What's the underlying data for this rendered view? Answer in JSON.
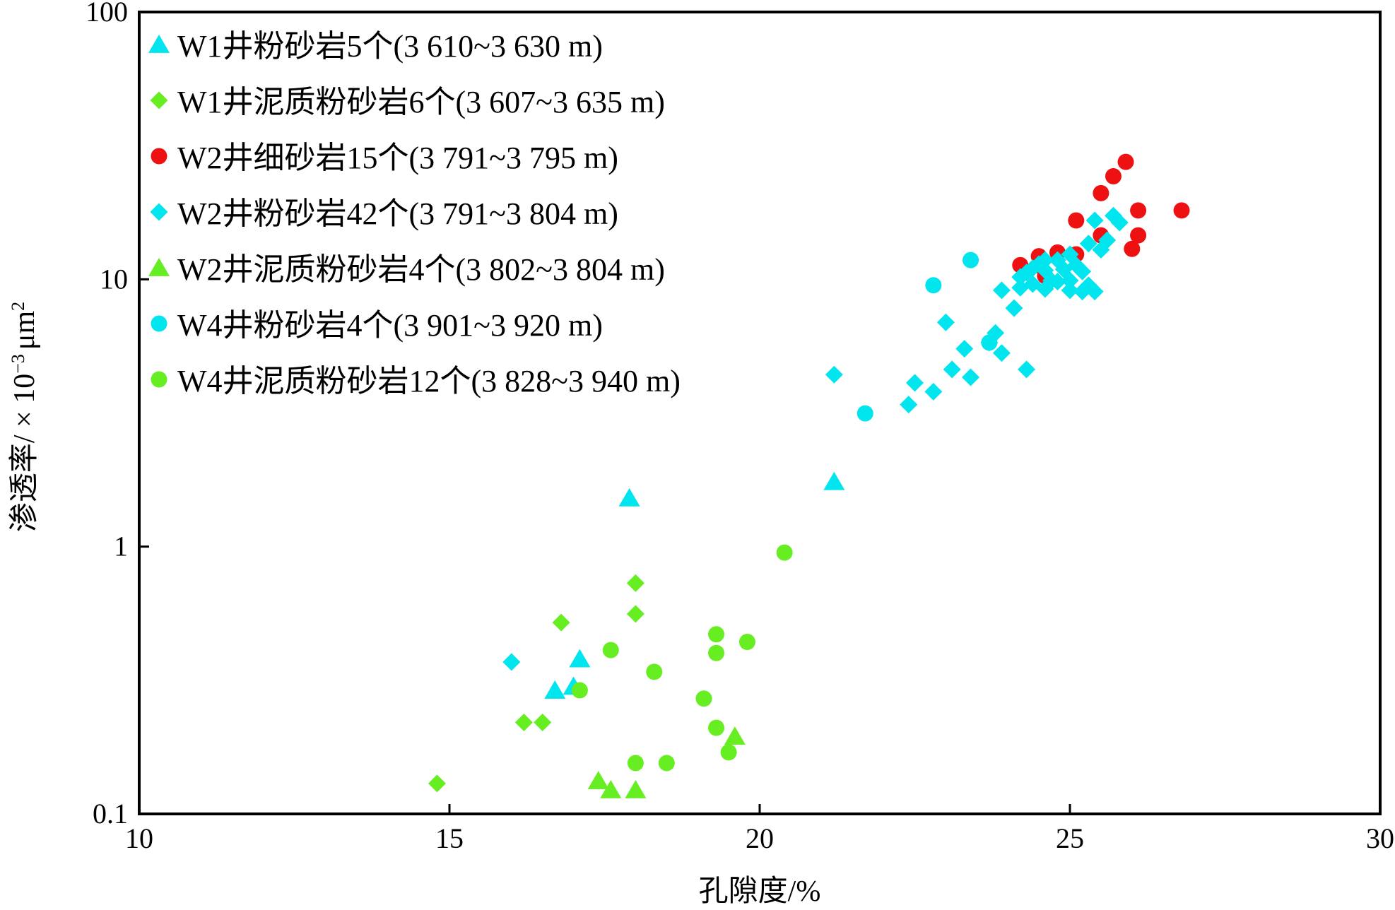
{
  "chart_data": {
    "type": "scatter",
    "title": "",
    "xlabel": "孔隙度/%",
    "ylabel": "渗透率/ × 10",
    "ylabel_sup": "−3",
    "ylabel_unit": "μm",
    "ylabel_unit_sup": "2",
    "x_scale": "linear",
    "y_scale": "log",
    "xlim": [
      10,
      30
    ],
    "ylim": [
      0.1,
      100
    ],
    "x_ticks": [
      10,
      15,
      20,
      25,
      30
    ],
    "x_tick_labels": [
      "10",
      "15",
      "20",
      "25",
      "30"
    ],
    "y_ticks": [
      0.1,
      1,
      10,
      100
    ],
    "y_tick_labels": [
      "0.1",
      "1",
      "10",
      "100"
    ],
    "grid": false,
    "legend_position": "top-left",
    "series": [
      {
        "name": "W1井粉砂岩5个(3 610~3 630 m)",
        "marker": "triangle",
        "color": "#00e5ee",
        "points": [
          [
            17.9,
            1.52
          ],
          [
            21.2,
            1.75
          ],
          [
            17.1,
            0.38
          ],
          [
            17.0,
            0.3
          ],
          [
            16.7,
            0.29
          ]
        ]
      },
      {
        "name": "W1井泥质粉砂岩6个(3 607~3 635 m)",
        "marker": "diamond",
        "color": "#66ee22",
        "points": [
          [
            18.0,
            0.73
          ],
          [
            18.0,
            0.56
          ],
          [
            16.8,
            0.52
          ],
          [
            16.2,
            0.22
          ],
          [
            16.5,
            0.22
          ],
          [
            14.8,
            0.13
          ]
        ]
      },
      {
        "name": "W2井细砂岩15个(3 791~3 795 m)",
        "marker": "circle",
        "color": "#ee1111",
        "points": [
          [
            25.9,
            27.5
          ],
          [
            25.7,
            24.3
          ],
          [
            25.5,
            21.0
          ],
          [
            26.8,
            18.1
          ],
          [
            26.1,
            18.1
          ],
          [
            25.1,
            16.6
          ],
          [
            25.5,
            14.6
          ],
          [
            26.1,
            14.6
          ],
          [
            26.0,
            13.0
          ],
          [
            24.8,
            12.6
          ],
          [
            25.1,
            12.4
          ],
          [
            24.5,
            12.2
          ],
          [
            24.2,
            11.3
          ],
          [
            24.5,
            11.3
          ],
          [
            24.6,
            10.3
          ]
        ]
      },
      {
        "name": "W2井粉砂岩42个(3 791~3 804 m)",
        "marker": "diamond",
        "color": "#00e5ee",
        "points": [
          [
            25.4,
            16.6
          ],
          [
            25.7,
            17.3
          ],
          [
            25.8,
            16.3
          ],
          [
            25.6,
            14.0
          ],
          [
            25.3,
            13.6
          ],
          [
            25.5,
            12.9
          ],
          [
            25.0,
            12.4
          ],
          [
            24.8,
            11.8
          ],
          [
            24.6,
            11.8
          ],
          [
            24.5,
            11.4
          ],
          [
            24.4,
            11.0
          ],
          [
            24.3,
            10.6
          ],
          [
            24.6,
            10.8
          ],
          [
            24.9,
            10.9
          ],
          [
            25.1,
            11.3
          ],
          [
            25.2,
            10.7
          ],
          [
            24.2,
            10.2
          ],
          [
            24.7,
            9.9
          ],
          [
            25.0,
            9.9
          ],
          [
            24.8,
            9.8
          ],
          [
            24.4,
            9.6
          ],
          [
            25.3,
            9.5
          ],
          [
            24.2,
            9.3
          ],
          [
            24.6,
            9.2
          ],
          [
            25.0,
            9.1
          ],
          [
            25.2,
            9.0
          ],
          [
            25.4,
            9.0
          ],
          [
            23.9,
            9.1
          ],
          [
            24.1,
            7.8
          ],
          [
            23.0,
            6.9
          ],
          [
            23.8,
            6.3
          ],
          [
            23.7,
            5.8
          ],
          [
            23.3,
            5.5
          ],
          [
            23.9,
            5.3
          ],
          [
            23.1,
            4.6
          ],
          [
            24.3,
            4.6
          ],
          [
            23.4,
            4.3
          ],
          [
            21.2,
            4.4
          ],
          [
            22.5,
            4.1
          ],
          [
            22.8,
            3.8
          ],
          [
            22.4,
            3.4
          ],
          [
            16.0,
            0.37
          ]
        ]
      },
      {
        "name": "W2井泥质粉砂岩4个(3 802~3 804 m)",
        "marker": "triangle",
        "color": "#66ee22",
        "points": [
          [
            19.6,
            0.195
          ],
          [
            17.4,
            0.133
          ],
          [
            17.6,
            0.123
          ],
          [
            18.0,
            0.123
          ]
        ]
      },
      {
        "name": "W4井粉砂岩4个(3 901~3 920 m)",
        "marker": "circle",
        "color": "#00e5ee",
        "points": [
          [
            23.4,
            11.8
          ],
          [
            22.8,
            9.5
          ],
          [
            21.7,
            3.15
          ],
          [
            23.7,
            5.8
          ]
        ]
      },
      {
        "name": "W4井泥质粉砂岩12个(3 828~3 940 m)",
        "marker": "circle",
        "color": "#66ee22",
        "points": [
          [
            20.4,
            0.95
          ],
          [
            19.8,
            0.44
          ],
          [
            19.3,
            0.47
          ],
          [
            19.3,
            0.4
          ],
          [
            17.6,
            0.41
          ],
          [
            18.3,
            0.34
          ],
          [
            19.1,
            0.27
          ],
          [
            19.3,
            0.21
          ],
          [
            19.5,
            0.17
          ],
          [
            18.5,
            0.155
          ],
          [
            18.0,
            0.155
          ],
          [
            17.1,
            0.29
          ]
        ]
      }
    ]
  }
}
